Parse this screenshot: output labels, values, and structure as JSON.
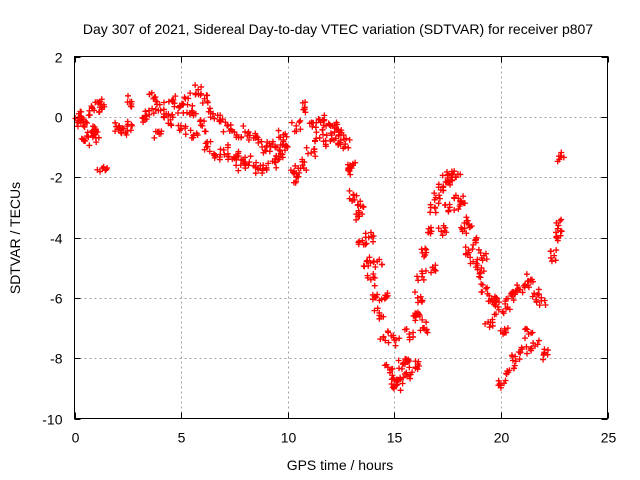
{
  "chart_data": {
    "type": "scatter",
    "title": "Day 307 of 2021, Sidereal Day-to-day VTEC variation (SDTVAR) for receiver p807",
    "xlabel": "GPS time / hours",
    "ylabel": "SDTVAR / TECUs",
    "xlim": [
      0,
      25
    ],
    "ylim": [
      -10,
      2
    ],
    "xticks": [
      0,
      5,
      10,
      15,
      20,
      25
    ],
    "yticks": [
      2,
      0,
      -2,
      -4,
      -6,
      -8,
      -10
    ],
    "xtick_labels": [
      "0",
      "5",
      "10",
      "15",
      "20",
      "25"
    ],
    "ytick_labels": [
      "2",
      "0",
      "-2",
      "-4",
      "-6",
      "-8",
      "-10"
    ],
    "grid": true,
    "marker": "+",
    "marker_color": "#ff0000",
    "series": [
      {
        "name": "SDTVAR",
        "x": [
          0.2,
          0.3,
          0.5,
          0.7,
          0.9,
          1.0,
          1.2,
          1.3,
          2.1,
          2.3,
          2.6,
          3.3,
          3.5,
          3.7,
          4.0,
          4.3,
          4.6,
          4.9,
          5.2,
          5.5,
          5.8,
          6.1,
          6.5,
          6.8,
          7.2,
          7.6,
          8.0,
          8.4,
          8.8,
          9.2,
          9.6,
          9.8,
          10.0,
          10.4,
          10.8,
          11.2,
          11.5,
          11.8,
          12.1,
          12.4,
          12.7,
          12.9,
          13.1,
          13.3,
          13.5,
          13.7,
          13.9,
          14.1,
          14.3,
          14.5,
          14.7,
          14.9,
          15.1,
          15.3,
          15.5,
          15.7,
          15.9,
          16.1,
          16.3,
          16.5,
          16.7,
          16.9,
          17.1,
          17.3,
          17.5,
          17.7,
          17.9,
          18.1,
          18.3,
          18.5,
          18.7,
          19.0,
          19.3,
          19.6,
          19.9,
          20.2,
          20.5,
          20.8,
          21.1,
          21.4,
          21.7,
          21.9,
          22.6,
          22.8,
          0.4,
          0.8,
          1.3,
          2.7,
          4.5,
          5.0,
          5.6,
          6.2,
          6.6,
          7.0,
          7.4,
          7.8,
          8.2,
          8.6,
          9.0,
          9.4,
          10.3,
          10.7,
          11.1,
          11.5,
          12.0,
          12.4,
          13.0,
          13.4,
          13.8,
          14.2,
          14.6,
          15.0,
          15.4,
          15.6,
          16.0,
          16.4,
          16.8,
          17.2,
          17.6,
          18.0,
          18.4,
          18.8,
          19.2,
          19.8,
          20.1,
          20.4,
          20.7,
          21.0,
          21.3,
          21.6,
          22.0,
          22.5,
          22.7,
          3.9,
          6.0,
          7.7,
          9.6,
          10.4,
          12.2,
          16.2,
          19.4,
          20.0
        ],
        "y": [
          0.1,
          -0.2,
          -0.8,
          0.2,
          -0.5,
          -0.7,
          0.5,
          -1.7,
          -0.3,
          -0.4,
          0.5,
          -0.1,
          0.2,
          0.6,
          0.4,
          0.1,
          0.5,
          0.3,
          0.6,
          0.2,
          0.9,
          0.6,
          0.1,
          -0.1,
          -0.3,
          -0.6,
          -0.5,
          -0.7,
          -1.0,
          -1.0,
          -1.1,
          -0.6,
          -1.0,
          -0.3,
          0.3,
          -0.2,
          -0.1,
          -0.3,
          -0.3,
          -0.6,
          -0.9,
          -1.8,
          -2.6,
          -3.3,
          -4.1,
          -4.8,
          -5.4,
          -6.0,
          -6.5,
          -7.3,
          -8.3,
          -8.7,
          -8.9,
          -8.7,
          -8.2,
          -7.2,
          -6.6,
          -6.0,
          -5.3,
          -4.5,
          -3.8,
          -3.0,
          -2.6,
          -2.3,
          -2.1,
          -2.0,
          -2.0,
          -2.9,
          -3.7,
          -4.5,
          -4.8,
          -5.2,
          -5.7,
          -6.1,
          -6.4,
          -6.2,
          -5.9,
          -5.7,
          -5.6,
          -5.4,
          -5.9,
          -6.1,
          -4.0,
          -1.3,
          -0.2,
          -0.5,
          0.3,
          -0.3,
          -0.1,
          -0.4,
          -0.6,
          -1.0,
          -1.3,
          -1.1,
          -1.4,
          -1.6,
          -1.5,
          -1.7,
          -1.7,
          -1.5,
          -1.8,
          -1.6,
          -1.2,
          -0.7,
          -0.8,
          -0.9,
          -1.7,
          -2.8,
          -4.0,
          -4.8,
          -6.0,
          -7.4,
          -8.2,
          -8.6,
          -8.3,
          -7.0,
          -5.0,
          -3.8,
          -3.0,
          -2.7,
          -3.5,
          -4.1,
          -4.6,
          -6.1,
          -7.2,
          -8.4,
          -8.1,
          -7.7,
          -7.2,
          -7.6,
          -7.9,
          -4.6,
          -3.6,
          -0.5,
          -0.3,
          -1.3,
          -1.4,
          -2.0,
          -0.5,
          -6.6,
          -6.8,
          -8.9
        ]
      }
    ]
  }
}
